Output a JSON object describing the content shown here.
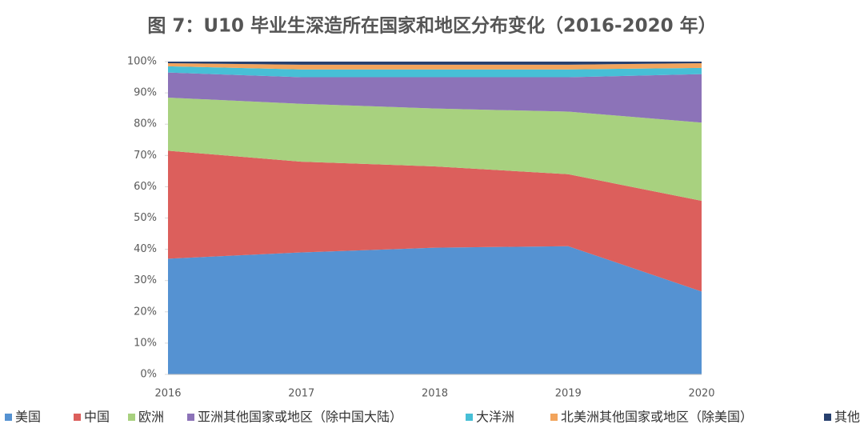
{
  "chart_data": {
    "type": "stacked-area",
    "title": "图 7：U10 毕业生深造所在国家和地区分布变化（2016-2020 年）",
    "categories": [
      "2016",
      "2017",
      "2018",
      "2019",
      "2020"
    ],
    "series": [
      {
        "name": "美国",
        "color": "#5592d2",
        "values": [
          37,
          39,
          40.5,
          41,
          26.5
        ]
      },
      {
        "name": "中国",
        "color": "#dc5f5c",
        "values": [
          34.5,
          29,
          26,
          23,
          29
        ]
      },
      {
        "name": "欧洲",
        "color": "#a8d17f",
        "values": [
          17,
          18.5,
          18.5,
          20,
          25
        ]
      },
      {
        "name": "亚洲其他国家或地区（除中国大陆）",
        "color": "#8c73b8",
        "values": [
          8,
          8.5,
          10,
          11,
          15.5
        ]
      },
      {
        "name": "大洋洲",
        "color": "#47bfd6",
        "values": [
          2,
          2.5,
          2.5,
          2.5,
          2
        ]
      },
      {
        "name": "北美洲其他国家或地区（除美国）",
        "color": "#f2a45c",
        "values": [
          1,
          1.5,
          1.5,
          1.5,
          1.5
        ]
      },
      {
        "name": "其他",
        "color": "#27406e",
        "values": [
          0.5,
          1,
          1,
          1,
          0.5
        ]
      }
    ],
    "ylim": [
      0,
      100
    ],
    "yticks": [
      {
        "value": 0,
        "label": "0%"
      },
      {
        "value": 10,
        "label": "10%"
      },
      {
        "value": 20,
        "label": "20%"
      },
      {
        "value": 30,
        "label": "30%"
      },
      {
        "value": 40,
        "label": "40%"
      },
      {
        "value": 50,
        "label": "50%"
      },
      {
        "value": 60,
        "label": "60%"
      },
      {
        "value": 70,
        "label": "70%"
      },
      {
        "value": 80,
        "label": "80%"
      },
      {
        "value": 90,
        "label": "90%"
      },
      {
        "value": 100,
        "label": "100%"
      }
    ],
    "grid": false
  }
}
